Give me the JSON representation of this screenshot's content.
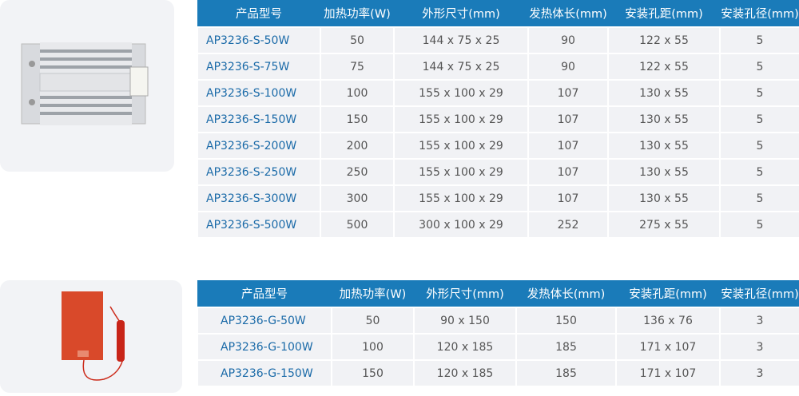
{
  "colors": {
    "header": "#1a7bb9",
    "model_text": "#1a6aa8",
    "row_bg": "#f1f2f5"
  },
  "headers": [
    "产品型号",
    "加热功率(W)",
    "外形尺寸(mm)",
    "发热体长(mm)",
    "安装孔距(mm)",
    "安装孔径(mm)"
  ],
  "table_s": [
    [
      "AP3236-S-50W",
      "50",
      "144 x 75 x 25",
      "90",
      "122 x 55",
      "5"
    ],
    [
      "AP3236-S-75W",
      "75",
      "144 x 75 x 25",
      "90",
      "122 x 55",
      "5"
    ],
    [
      "AP3236-S-100W",
      "100",
      "155 x 100 x 29",
      "107",
      "130 x 55",
      "5"
    ],
    [
      "AP3236-S-150W",
      "150",
      "155 x 100 x 29",
      "107",
      "130 x 55",
      "5"
    ],
    [
      "AP3236-S-200W",
      "200",
      "155 x 100 x 29",
      "107",
      "130 x 55",
      "5"
    ],
    [
      "AP3236-S-250W",
      "250",
      "155 x 100 x 29",
      "107",
      "130 x 55",
      "5"
    ],
    [
      "AP3236-S-300W",
      "300",
      "155 x 100 x 29",
      "107",
      "130 x 55",
      "5"
    ],
    [
      "AP3236-S-500W",
      "500",
      "300 x 100 x 29",
      "252",
      "275 x 55",
      "5"
    ]
  ],
  "table_g": [
    [
      "AP3236-G-50W",
      "50",
      "90 x 150",
      "150",
      "136 x 76",
      "3"
    ],
    [
      "AP3236-G-100W",
      "100",
      "120 x 185",
      "185",
      "171 x 107",
      "3"
    ],
    [
      "AP3236-G-150W",
      "150",
      "120 x 185",
      "185",
      "171 x 107",
      "3"
    ]
  ]
}
